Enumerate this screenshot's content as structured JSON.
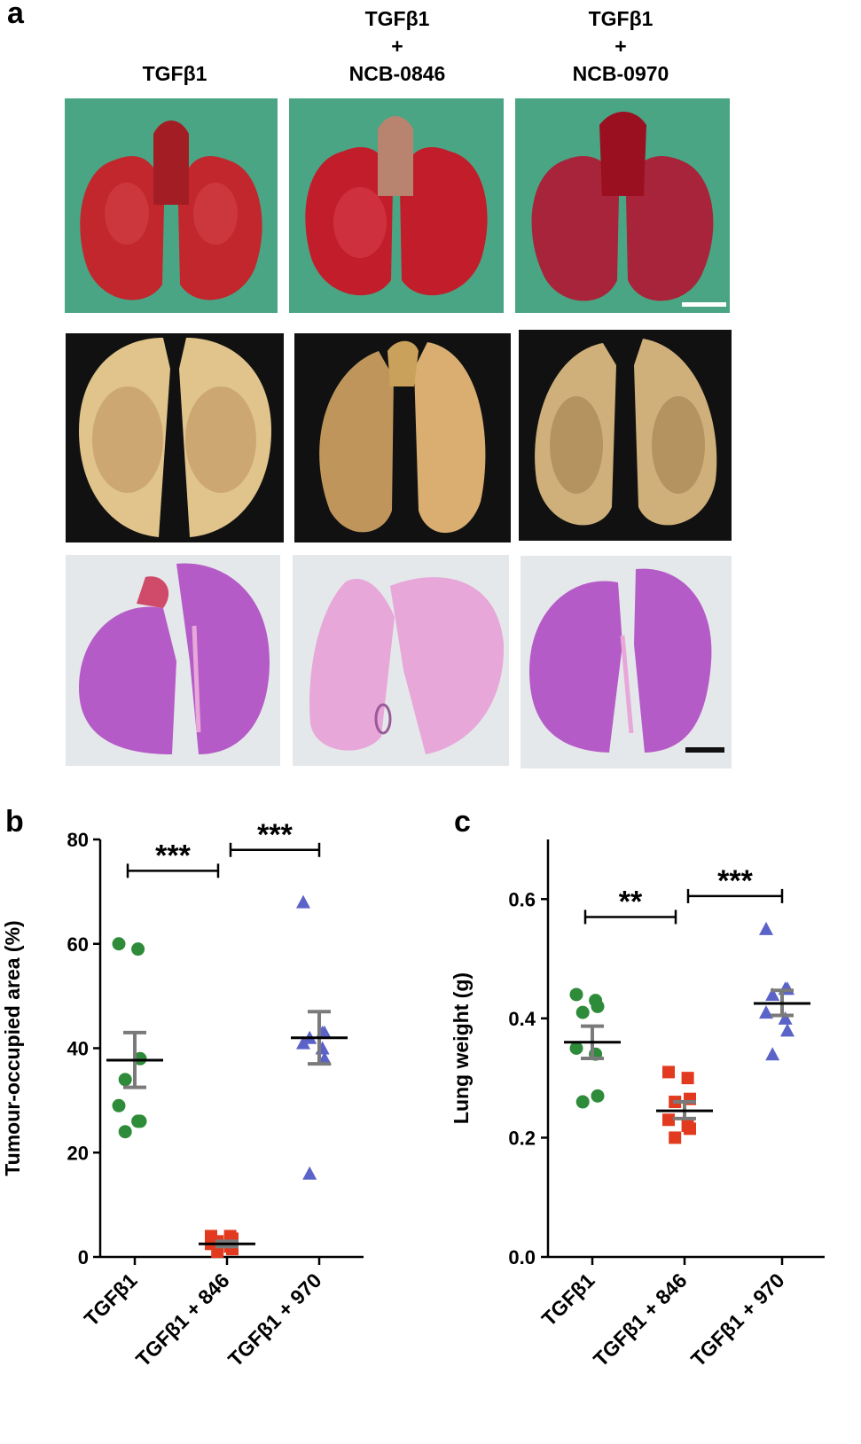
{
  "panel_a": {
    "label": "a",
    "columns": [
      {
        "lines": [
          "TGFβ1"
        ]
      },
      {
        "lines": [
          "TGFβ1",
          "+",
          "NCB-0846"
        ]
      },
      {
        "lines": [
          "TGFβ1",
          "+",
          "NCB-0970"
        ]
      }
    ]
  },
  "colors": {
    "green": "#2e8b3a",
    "red": "#e23a1f",
    "blue": "#5b63c9",
    "mean_black": "#000000",
    "errorbar_grey": "#7a7a7a",
    "photo_background_green": "#4aa585",
    "photo_background_black": "#111111",
    "photo_background_grey": "#e5e8ea",
    "lung_red": "#c1272d",
    "lung_fixed": "#c9a06a",
    "stain_purple": "#b55bc7",
    "stain_pink": "#e7a7d9"
  },
  "chart_data": [
    {
      "panel": "b",
      "type": "scatter",
      "ylabel": "Tumour-occupied area (%)",
      "ylim": [
        0,
        80
      ],
      "yticks": [
        "0",
        "20",
        "40",
        "60",
        "80"
      ],
      "categories": [
        "TGFβ1",
        "TGFβ1 + 846",
        "TGFβ1 + 970"
      ],
      "series": [
        {
          "marker": "circle",
          "color": "green",
          "points": [
            60,
            59,
            38,
            34,
            29,
            26,
            26,
            24
          ],
          "mean": 37.7,
          "sem": [
            32.5,
            43
          ]
        },
        {
          "marker": "square",
          "color": "red",
          "points": [
            4,
            4,
            3.5,
            3,
            2.5,
            2,
            1.5,
            1
          ],
          "mean": 2.5,
          "sem": [
            2,
            3
          ]
        },
        {
          "marker": "triangle",
          "color": "blue",
          "points": [
            68,
            43,
            43,
            42,
            41,
            40,
            38,
            16
          ],
          "mean": 42,
          "sem": [
            37,
            47
          ]
        }
      ],
      "significance": [
        {
          "from": 0,
          "to": 1,
          "y": 74,
          "label": "***"
        },
        {
          "from": 1,
          "to": 2,
          "y": 78,
          "label": "***"
        }
      ]
    },
    {
      "panel": "c",
      "type": "scatter",
      "ylabel": "Lung weight (g)",
      "ylim": [
        0,
        0.7
      ],
      "yticks": [
        "0.0",
        "0.2",
        "0.4",
        "0.6"
      ],
      "categories": [
        "TGFβ1",
        "TGFβ1 + 846",
        "TGFβ1 + 970"
      ],
      "series": [
        {
          "marker": "circle",
          "color": "green",
          "points": [
            0.44,
            0.43,
            0.42,
            0.41,
            0.35,
            0.34,
            0.27,
            0.26
          ],
          "mean": 0.36,
          "sem": [
            0.333,
            0.387
          ]
        },
        {
          "marker": "square",
          "color": "red",
          "points": [
            0.31,
            0.3,
            0.265,
            0.26,
            0.23,
            0.22,
            0.215,
            0.2
          ],
          "mean": 0.245,
          "sem": [
            0.232,
            0.26
          ]
        },
        {
          "marker": "triangle",
          "color": "blue",
          "points": [
            0.55,
            0.45,
            0.45,
            0.44,
            0.41,
            0.4,
            0.38,
            0.34
          ],
          "mean": 0.425,
          "sem": [
            0.405,
            0.447
          ]
        }
      ],
      "significance": [
        {
          "from": 0,
          "to": 1,
          "y": 0.57,
          "label": "**"
        },
        {
          "from": 1,
          "to": 2,
          "y": 0.605,
          "label": "***"
        }
      ]
    }
  ]
}
